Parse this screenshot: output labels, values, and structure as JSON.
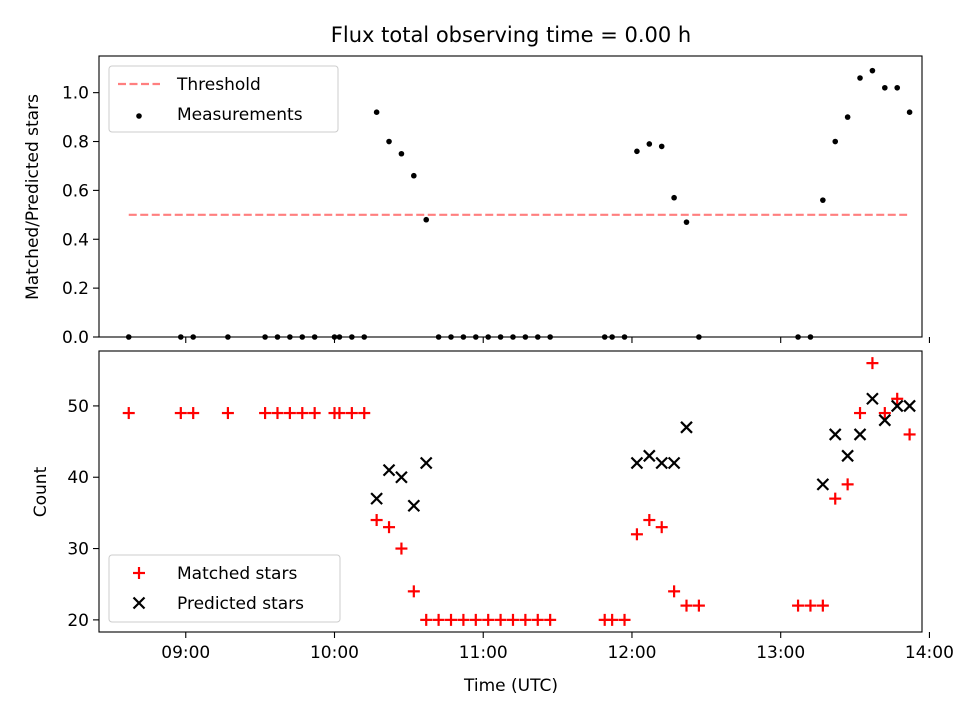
{
  "chart_data": [
    {
      "type": "scatter",
      "title": "Flux total observing time = 0.00 h",
      "ylabel": "Matched/Predicted stars",
      "xlabel": "",
      "xlim": [
        "08:25",
        "13:57"
      ],
      "ylim": [
        0,
        1.15
      ],
      "yticks": [
        0.0,
        0.2,
        0.4,
        0.6,
        0.8,
        1.0
      ],
      "ytick_labels": [
        "0.0",
        "0.2",
        "0.4",
        "0.6",
        "0.8",
        "1.0"
      ],
      "legend_position": "top-left",
      "threshold": {
        "name": "Threshold",
        "value": 0.5,
        "x_start": "08:37",
        "x_end": "13:51",
        "color": "#ff7f7f"
      },
      "series": [
        {
          "name": "Measurements",
          "color": "#000000",
          "points": [
            [
              "08:37",
              0.0
            ],
            [
              "08:58",
              0.0
            ],
            [
              "09:03",
              0.0
            ],
            [
              "09:17",
              0.0
            ],
            [
              "09:32",
              0.0
            ],
            [
              "09:37",
              0.0
            ],
            [
              "09:42",
              0.0
            ],
            [
              "09:47",
              0.0
            ],
            [
              "09:52",
              0.0
            ],
            [
              "10:00",
              0.0
            ],
            [
              "10:02",
              0.0
            ],
            [
              "10:07",
              0.0
            ],
            [
              "10:12",
              0.0
            ],
            [
              "10:17",
              0.92
            ],
            [
              "10:22",
              0.8
            ],
            [
              "10:27",
              0.75
            ],
            [
              "10:32",
              0.66
            ],
            [
              "10:37",
              0.48
            ],
            [
              "10:42",
              0.0
            ],
            [
              "10:47",
              0.0
            ],
            [
              "10:52",
              0.0
            ],
            [
              "10:57",
              0.0
            ],
            [
              "11:02",
              0.0
            ],
            [
              "11:07",
              0.0
            ],
            [
              "11:12",
              0.0
            ],
            [
              "11:17",
              0.0
            ],
            [
              "11:22",
              0.0
            ],
            [
              "11:27",
              0.0
            ],
            [
              "11:49",
              0.0
            ],
            [
              "11:52",
              0.0
            ],
            [
              "11:57",
              0.0
            ],
            [
              "12:02",
              0.76
            ],
            [
              "12:07",
              0.79
            ],
            [
              "12:12",
              0.78
            ],
            [
              "12:17",
              0.57
            ],
            [
              "12:22",
              0.47
            ],
            [
              "12:27",
              0.0
            ],
            [
              "13:07",
              0.0
            ],
            [
              "13:12",
              0.0
            ],
            [
              "13:17",
              0.56
            ],
            [
              "13:22",
              0.8
            ],
            [
              "13:27",
              0.9
            ],
            [
              "13:32",
              1.06
            ],
            [
              "13:37",
              1.09
            ],
            [
              "13:42",
              1.02
            ],
            [
              "13:47",
              1.02
            ],
            [
              "13:52",
              0.92
            ]
          ]
        }
      ]
    },
    {
      "type": "scatter",
      "title": "",
      "ylabel": "Count",
      "xlabel": "Time (UTC)",
      "xlim": [
        "08:25",
        "13:57"
      ],
      "ylim": [
        18.3,
        57.7
      ],
      "yticks": [
        20,
        30,
        40,
        50
      ],
      "ytick_labels": [
        "20",
        "30",
        "40",
        "50"
      ],
      "xticks": [
        "09:00",
        "10:00",
        "11:00",
        "12:00",
        "13:00",
        "14:00"
      ],
      "legend_position": "bottom-left",
      "series": [
        {
          "name": "Matched stars",
          "color": "#ff0000",
          "marker": "plus",
          "points": [
            [
              "08:37",
              49
            ],
            [
              "08:58",
              49
            ],
            [
              "09:03",
              49
            ],
            [
              "09:17",
              49
            ],
            [
              "09:32",
              49
            ],
            [
              "09:37",
              49
            ],
            [
              "09:42",
              49
            ],
            [
              "09:47",
              49
            ],
            [
              "09:52",
              49
            ],
            [
              "10:00",
              49
            ],
            [
              "10:02",
              49
            ],
            [
              "10:07",
              49
            ],
            [
              "10:12",
              49
            ],
            [
              "10:17",
              34
            ],
            [
              "10:22",
              33
            ],
            [
              "10:27",
              30
            ],
            [
              "10:32",
              24
            ],
            [
              "10:37",
              20
            ],
            [
              "10:42",
              20
            ],
            [
              "10:47",
              20
            ],
            [
              "10:52",
              20
            ],
            [
              "10:57",
              20
            ],
            [
              "11:02",
              20
            ],
            [
              "11:07",
              20
            ],
            [
              "11:12",
              20
            ],
            [
              "11:17",
              20
            ],
            [
              "11:22",
              20
            ],
            [
              "11:27",
              20
            ],
            [
              "11:49",
              20
            ],
            [
              "11:52",
              20
            ],
            [
              "11:57",
              20
            ],
            [
              "12:02",
              32
            ],
            [
              "12:07",
              34
            ],
            [
              "12:12",
              33
            ],
            [
              "12:17",
              24
            ],
            [
              "12:22",
              22
            ],
            [
              "12:27",
              22
            ],
            [
              "13:07",
              22
            ],
            [
              "13:12",
              22
            ],
            [
              "13:17",
              22
            ],
            [
              "13:22",
              37
            ],
            [
              "13:27",
              39
            ],
            [
              "13:32",
              49
            ],
            [
              "13:37",
              56
            ],
            [
              "13:42",
              49
            ],
            [
              "13:47",
              51
            ],
            [
              "13:52",
              46
            ]
          ]
        },
        {
          "name": "Predicted stars",
          "color": "#000000",
          "marker": "x",
          "points": [
            [
              "10:17",
              37
            ],
            [
              "10:22",
              41
            ],
            [
              "10:27",
              40
            ],
            [
              "10:32",
              36
            ],
            [
              "10:37",
              42
            ],
            [
              "12:02",
              42
            ],
            [
              "12:07",
              43
            ],
            [
              "12:12",
              42
            ],
            [
              "12:17",
              42
            ],
            [
              "12:22",
              47
            ],
            [
              "13:17",
              39
            ],
            [
              "13:22",
              46
            ],
            [
              "13:27",
              43
            ],
            [
              "13:32",
              46
            ],
            [
              "13:37",
              51
            ],
            [
              "13:42",
              48
            ],
            [
              "13:47",
              50
            ],
            [
              "13:52",
              50
            ]
          ]
        }
      ]
    }
  ]
}
